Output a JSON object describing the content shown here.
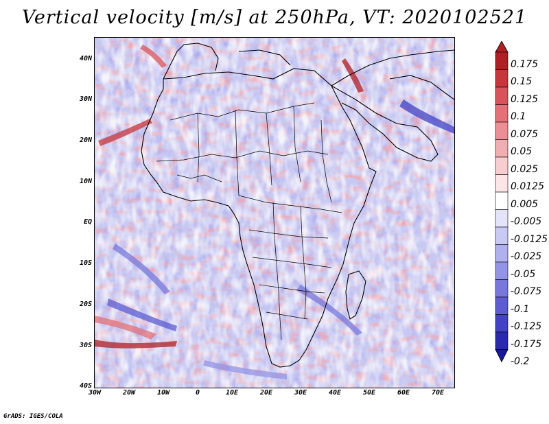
{
  "title": "Vertical velocity [m/s] at 250hPa, VT: 2020102521",
  "footer": "GrADS: IGES/COLA",
  "map": {
    "region": "Africa and surrounding oceans",
    "field": "vertical velocity",
    "lat_range": [
      -40,
      45
    ],
    "lon_range": [
      -30,
      75
    ]
  },
  "lat_labels": [
    "40N",
    "30N",
    "20N",
    "10N",
    "EQ",
    "10S",
    "20S",
    "30S",
    "40S"
  ],
  "lon_labels": [
    "30W",
    "20W",
    "10W",
    "0",
    "10E",
    "20E",
    "30E",
    "40E",
    "50E",
    "60E",
    "70E"
  ],
  "colorbar": {
    "labels": [
      "0.175",
      "0.15",
      "0.125",
      "0.1",
      "0.075",
      "0.05",
      "0.025",
      "0.0125",
      "0.005",
      "-0.005",
      "-0.0125",
      "-0.025",
      "-0.05",
      "-0.075",
      "-0.1",
      "-0.125",
      "-0.175",
      "-0.2"
    ],
    "colors": [
      "#b01f24",
      "#c8363a",
      "#d8545a",
      "#e37177",
      "#eb8f94",
      "#f1aeb2",
      "#f7cdd0",
      "#fbe5e6",
      "#ffffff",
      "#e3e3fa",
      "#c9c9f4",
      "#b0b0ee",
      "#9494e6",
      "#7878dc",
      "#5d5dd2",
      "#4242c4",
      "#2a2ab0",
      "#18189c"
    ]
  }
}
